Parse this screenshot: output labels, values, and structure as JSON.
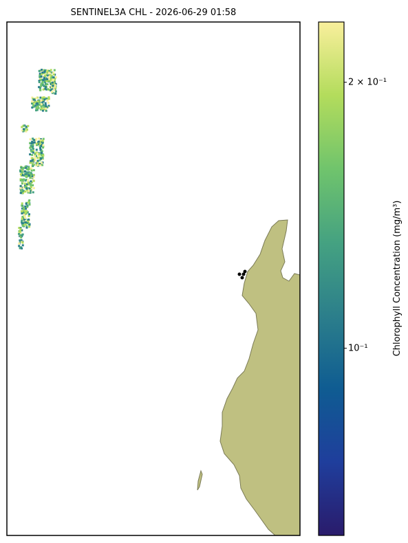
{
  "map": {
    "title": "SENTINEL3A CHL - 2026-06-29 01:58",
    "colorbar": {
      "label": "Chlorophyll Concentration (mg/m³)",
      "scale": "log",
      "lim": [
        0.0614,
        0.234
      ],
      "ticks": [
        {
          "value": 0.2,
          "label": "2 × 10⁻¹"
        },
        {
          "value": 0.1,
          "label": "10⁻¹"
        }
      ],
      "colors": [
        "#2a1b6b",
        "#1f3e9c",
        "#0f5c92",
        "#2c7f8b",
        "#45a281",
        "#70c46c",
        "#b3dc5c",
        "#f9ef9c"
      ]
    }
  }
}
